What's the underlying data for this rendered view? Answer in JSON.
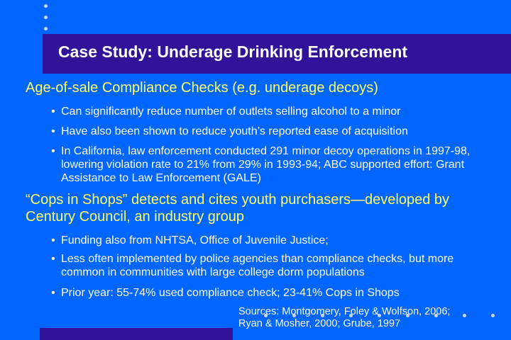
{
  "slide": {
    "title": "Case Study: Underage Drinking Enforcement",
    "bullet_glyph": "•",
    "point1": {
      "heading": "Age-of-sale Compliance Checks (e.g. underage decoys)",
      "sub": [
        "Can significantly reduce number of outlets selling alcohol to a minor",
        "Have also been shown to reduce youth’s reported ease of acquisition",
        "In California, law enforcement conducted 291 minor decoy operations in 1997-98, lowering violation rate to 21% from 29% in 1993-94; ABC supported effort: Grant Assistance to Law Enforcement (GALE)"
      ]
    },
    "point2": {
      "heading": "“Cops in Shops” detects and cites youth purchasers—developed by Century Council, an industry group",
      "sub": [
        "Funding also from NHTSA, Office of Juvenile Justice;",
        "Less often implemented by police agencies than compliance checks, but more common in communities with large college dorm populations",
        "Prior year: 55-74% used compliance check; 23-41% Cops in Shops"
      ]
    },
    "sources_line1": "Sources: Montgomery, Foley & Wolfson, 2006;",
    "sources_line2": "Ryan & Mosher, 2000; Grube, 1997"
  },
  "colors": {
    "background": "#0066ff",
    "title_bar": "#33129a",
    "heading_text": "#ffff66",
    "body_text": "#ffffff",
    "decor_dots": "#c9d3f5"
  }
}
